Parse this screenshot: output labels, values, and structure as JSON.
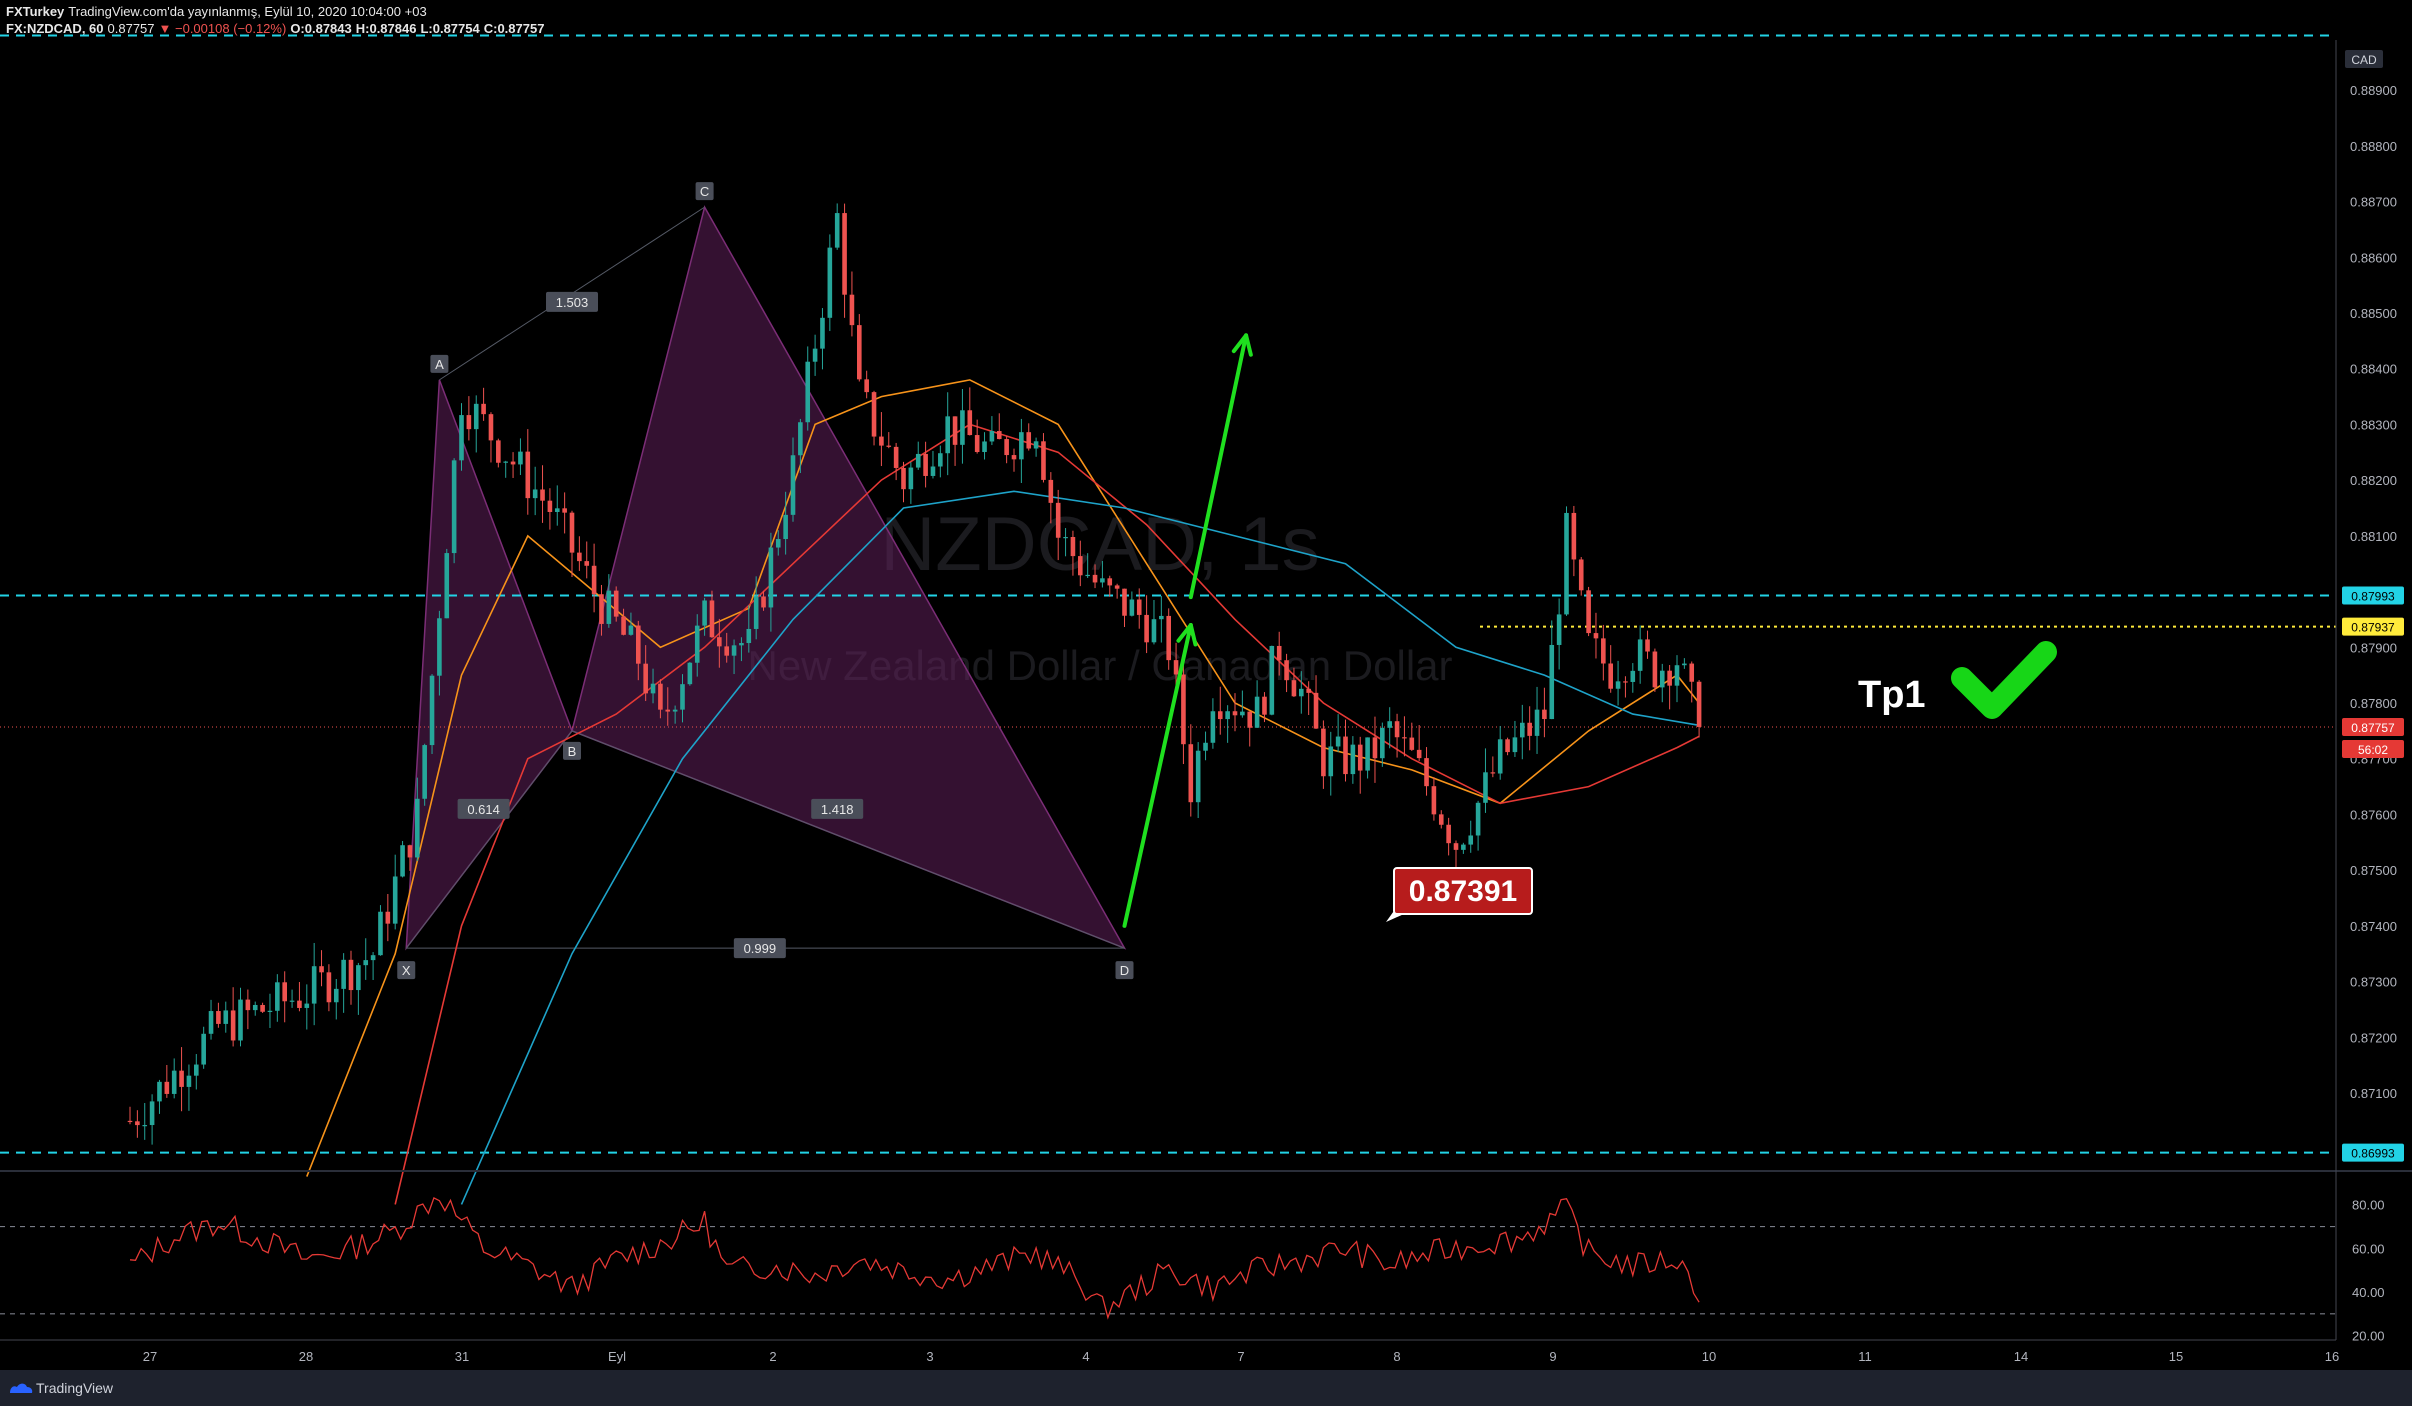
{
  "header": {
    "author": "FXTurkey",
    "published": "TradingView.com'da yayınlanmış, Eylül 10, 2020 10:04:00 +03",
    "symbol": "FX:NZDCAD, 60",
    "last": "0.87757",
    "change": "▼ −0.00108 (−0.12%)",
    "open": "O:0.87843",
    "high": "H:0.87846",
    "low": "L:0.87754",
    "close": "C:0.87757"
  },
  "watermark": {
    "symbol": "NZDCAD, 1s",
    "name": "New Zealand Dollar / Canadian Dollar"
  },
  "footer": {
    "brand": "TradingView"
  },
  "colors": {
    "background": "#000000",
    "up": "#26a69a",
    "down": "#ef5350",
    "pattern_fill": "#5e1f5a",
    "arrow": "#1fe01f",
    "cyan_level": "#22d3e6",
    "target": "#ffeb3b",
    "ma_orange": "#f7931a",
    "ma_red": "#e53935",
    "ma_blue": "#1ea3c9",
    "rsi": "#e53935"
  },
  "chart_data": {
    "type": "line",
    "subtype": "candlestick",
    "timeframe": "60",
    "x_ticks": [
      "27",
      "28",
      "31",
      "Eyl",
      "2",
      "3",
      "4",
      "7",
      "8",
      "9",
      "10",
      "11",
      "14",
      "15",
      "16"
    ],
    "currency": "CAD",
    "y_ticks": [
      "0.88900",
      "0.88800",
      "0.88700",
      "0.88600",
      "0.88500",
      "0.88400",
      "0.88300",
      "0.88200",
      "0.88100",
      "0.87900",
      "0.87800",
      "0.87700",
      "0.87600",
      "0.87500",
      "0.87400",
      "0.87300",
      "0.87200",
      "0.87100"
    ],
    "ylim": [
      0.8696,
      0.8899
    ],
    "price_anchors": [
      {
        "x": 0,
        "y": 0.8705
      },
      {
        "x": 4,
        "y": 0.8722
      },
      {
        "x": 8,
        "y": 0.8728
      },
      {
        "x": 11,
        "y": 0.8735
      },
      {
        "x": 13,
        "y": 0.876
      },
      {
        "x": 15,
        "y": 0.8835
      },
      {
        "x": 17,
        "y": 0.8825
      },
      {
        "x": 19,
        "y": 0.8815
      },
      {
        "x": 21,
        "y": 0.88
      },
      {
        "x": 23,
        "y": 0.8788
      },
      {
        "x": 24,
        "y": 0.8776
      },
      {
        "x": 26,
        "y": 0.8795
      },
      {
        "x": 28,
        "y": 0.879
      },
      {
        "x": 30,
        "y": 0.8822
      },
      {
        "x": 31,
        "y": 0.8845
      },
      {
        "x": 32,
        "y": 0.8867
      },
      {
        "x": 33,
        "y": 0.8835
      },
      {
        "x": 35,
        "y": 0.882
      },
      {
        "x": 37,
        "y": 0.883
      },
      {
        "x": 39,
        "y": 0.8825
      },
      {
        "x": 41,
        "y": 0.883
      },
      {
        "x": 42,
        "y": 0.881
      },
      {
        "x": 44,
        "y": 0.88
      },
      {
        "x": 46,
        "y": 0.8795
      },
      {
        "x": 47,
        "y": 0.879
      },
      {
        "x": 48,
        "y": 0.8765
      },
      {
        "x": 49,
        "y": 0.8782
      },
      {
        "x": 51,
        "y": 0.8778
      },
      {
        "x": 52,
        "y": 0.879
      },
      {
        "x": 53,
        "y": 0.8782
      },
      {
        "x": 54,
        "y": 0.877
      },
      {
        "x": 56,
        "y": 0.877
      },
      {
        "x": 57,
        "y": 0.8775
      },
      {
        "x": 58,
        "y": 0.877
      },
      {
        "x": 59,
        "y": 0.8763
      },
      {
        "x": 60,
        "y": 0.8755
      },
      {
        "x": 61,
        "y": 0.8762
      },
      {
        "x": 62,
        "y": 0.877
      },
      {
        "x": 64,
        "y": 0.8778
      },
      {
        "x": 65,
        "y": 0.881
      },
      {
        "x": 66,
        "y": 0.879
      },
      {
        "x": 67,
        "y": 0.8786
      },
      {
        "x": 68,
        "y": 0.8789
      },
      {
        "x": 69,
        "y": 0.8786
      },
      {
        "x": 70,
        "y": 0.8788
      },
      {
        "x": 71,
        "y": 0.87757
      }
    ],
    "moving_averages": [
      {
        "color": "orange",
        "points": [
          {
            "x": 8,
            "y": 0.8695
          },
          {
            "x": 12,
            "y": 0.8735
          },
          {
            "x": 15,
            "y": 0.8785
          },
          {
            "x": 18,
            "y": 0.881
          },
          {
            "x": 21,
            "y": 0.88
          },
          {
            "x": 24,
            "y": 0.879
          },
          {
            "x": 28,
            "y": 0.8797
          },
          {
            "x": 31,
            "y": 0.883
          },
          {
            "x": 34,
            "y": 0.8835
          },
          {
            "x": 38,
            "y": 0.8838
          },
          {
            "x": 42,
            "y": 0.883
          },
          {
            "x": 46,
            "y": 0.8805
          },
          {
            "x": 50,
            "y": 0.878
          },
          {
            "x": 54,
            "y": 0.8772
          },
          {
            "x": 58,
            "y": 0.8768
          },
          {
            "x": 62,
            "y": 0.8762
          },
          {
            "x": 66,
            "y": 0.8775
          },
          {
            "x": 70,
            "y": 0.8785
          },
          {
            "x": 71,
            "y": 0.878
          }
        ]
      },
      {
        "color": "red",
        "points": [
          {
            "x": 12,
            "y": 0.869
          },
          {
            "x": 15,
            "y": 0.874
          },
          {
            "x": 18,
            "y": 0.877
          },
          {
            "x": 22,
            "y": 0.8778
          },
          {
            "x": 26,
            "y": 0.879
          },
          {
            "x": 30,
            "y": 0.8805
          },
          {
            "x": 34,
            "y": 0.882
          },
          {
            "x": 38,
            "y": 0.883
          },
          {
            "x": 42,
            "y": 0.8825
          },
          {
            "x": 46,
            "y": 0.8812
          },
          {
            "x": 50,
            "y": 0.8795
          },
          {
            "x": 54,
            "y": 0.878
          },
          {
            "x": 58,
            "y": 0.877
          },
          {
            "x": 62,
            "y": 0.8762
          },
          {
            "x": 66,
            "y": 0.8765
          },
          {
            "x": 70,
            "y": 0.8772
          },
          {
            "x": 71,
            "y": 0.8774
          }
        ]
      },
      {
        "color": "blue",
        "points": [
          {
            "x": 15,
            "y": 0.869
          },
          {
            "x": 20,
            "y": 0.8735
          },
          {
            "x": 25,
            "y": 0.877
          },
          {
            "x": 30,
            "y": 0.8795
          },
          {
            "x": 35,
            "y": 0.8815
          },
          {
            "x": 40,
            "y": 0.8818
          },
          {
            "x": 45,
            "y": 0.8815
          },
          {
            "x": 50,
            "y": 0.881
          },
          {
            "x": 55,
            "y": 0.8805
          },
          {
            "x": 60,
            "y": 0.879
          },
          {
            "x": 64,
            "y": 0.8785
          },
          {
            "x": 68,
            "y": 0.8778
          },
          {
            "x": 71,
            "y": 0.8776
          }
        ]
      }
    ],
    "harmonic_pattern": {
      "points": [
        {
          "label": "X",
          "x": 12.5,
          "y": 0.8736
        },
        {
          "label": "A",
          "x": 14,
          "y": 0.8838
        },
        {
          "label": "B",
          "x": 20,
          "y": 0.8775
        },
        {
          "label": "C",
          "x": 26,
          "y": 0.8869
        },
        {
          "label": "D",
          "x": 45,
          "y": 0.8736
        }
      ],
      "ratios": [
        {
          "label": "1.503",
          "x": 20,
          "y": 0.8852
        },
        {
          "label": "0.614",
          "x": 16,
          "y": 0.8761
        },
        {
          "label": "1.418",
          "x": 32,
          "y": 0.8761
        },
        {
          "label": "0.999",
          "x": 28.5,
          "y": 0.8736
        }
      ]
    },
    "levels": [
      {
        "price": 0.88998,
        "label": "",
        "color": "cyan"
      },
      {
        "price": 0.87993,
        "label": "0.87993",
        "color": "cyan"
      },
      {
        "price": 0.87937,
        "label": "0.87937",
        "color": "yellow"
      },
      {
        "price": 0.86993,
        "label": "0.86993",
        "color": "cyan"
      }
    ],
    "last_price": {
      "price": "0.87757",
      "countdown": "56:02"
    },
    "annotations": {
      "entry_price": "0.87391",
      "target_label": "Tp1"
    },
    "arrows": [
      {
        "from": {
          "x": 45,
          "y": 0.874
        },
        "to": {
          "x": 48,
          "y": 0.8794
        }
      },
      {
        "from": {
          "x": 48,
          "y": 0.8799
        },
        "to": {
          "x": 50.5,
          "y": 0.8846
        }
      }
    ],
    "rsi": {
      "y_ticks": [
        "80.00",
        "60.00",
        "40.00",
        "20.00"
      ],
      "ylim": [
        18,
        95
      ],
      "bands": [
        70,
        30
      ],
      "anchors": [
        {
          "x": 0,
          "y": 52
        },
        {
          "x": 2,
          "y": 65
        },
        {
          "x": 4,
          "y": 72
        },
        {
          "x": 6,
          "y": 64
        },
        {
          "x": 8,
          "y": 55
        },
        {
          "x": 10,
          "y": 60
        },
        {
          "x": 12,
          "y": 68
        },
        {
          "x": 14,
          "y": 85
        },
        {
          "x": 16,
          "y": 60
        },
        {
          "x": 18,
          "y": 52
        },
        {
          "x": 20,
          "y": 42
        },
        {
          "x": 22,
          "y": 55
        },
        {
          "x": 24,
          "y": 62
        },
        {
          "x": 26,
          "y": 72
        },
        {
          "x": 27,
          "y": 50
        },
        {
          "x": 29,
          "y": 52
        },
        {
          "x": 31,
          "y": 48
        },
        {
          "x": 33,
          "y": 55
        },
        {
          "x": 35,
          "y": 50
        },
        {
          "x": 37,
          "y": 46
        },
        {
          "x": 39,
          "y": 52
        },
        {
          "x": 41,
          "y": 58
        },
        {
          "x": 43,
          "y": 45
        },
        {
          "x": 44,
          "y": 32
        },
        {
          "x": 45,
          "y": 38
        },
        {
          "x": 47,
          "y": 50
        },
        {
          "x": 49,
          "y": 42
        },
        {
          "x": 51,
          "y": 50
        },
        {
          "x": 53,
          "y": 55
        },
        {
          "x": 55,
          "y": 60
        },
        {
          "x": 57,
          "y": 52
        },
        {
          "x": 59,
          "y": 58
        },
        {
          "x": 61,
          "y": 62
        },
        {
          "x": 63,
          "y": 65
        },
        {
          "x": 65,
          "y": 78
        },
        {
          "x": 66,
          "y": 58
        },
        {
          "x": 68,
          "y": 52
        },
        {
          "x": 70,
          "y": 55
        },
        {
          "x": 71,
          "y": 40
        }
      ]
    }
  }
}
